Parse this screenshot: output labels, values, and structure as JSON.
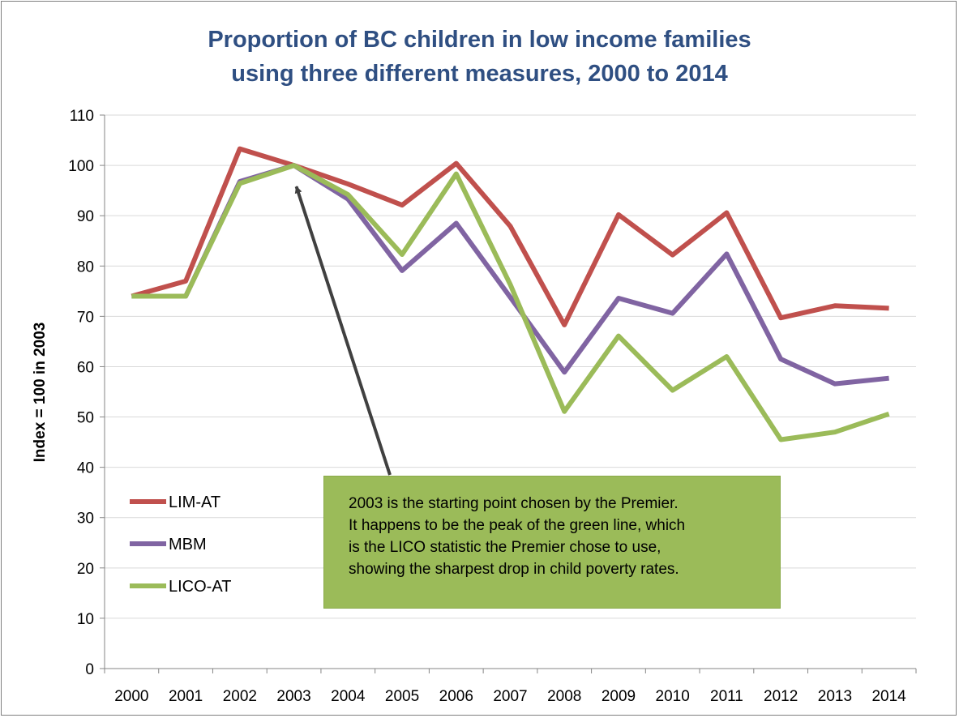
{
  "chart_data": {
    "type": "line",
    "title_lines": [
      "Proportion of BC children in low income families",
      "using three different measures, 2000 to 2014"
    ],
    "ylabel": "Index = 100 in 2003",
    "ylim": [
      0,
      110
    ],
    "yticks": [
      "0",
      "10",
      "20",
      "30",
      "40",
      "50",
      "60",
      "70",
      "80",
      "90",
      "100",
      "110"
    ],
    "categories": [
      "2000",
      "2001",
      "2002",
      "2003",
      "2004",
      "2005",
      "2006",
      "2007",
      "2008",
      "2009",
      "2010",
      "2011",
      "2012",
      "2013",
      "2014"
    ],
    "series": [
      {
        "name": "LIM-AT",
        "color": "#c0504d",
        "values": [
          74,
          77,
          103.3,
          100,
          96.3,
          92.1,
          100.4,
          87.9,
          68.3,
          90.2,
          82.2,
          90.6,
          69.7,
          72.1,
          71.6
        ]
      },
      {
        "name": "MBM",
        "color": "#8064a2",
        "values": [
          74,
          74,
          96.8,
          100,
          93.3,
          79.1,
          88.5,
          73.8,
          58.9,
          73.6,
          70.6,
          82.4,
          61.5,
          56.6,
          57.7
        ]
      },
      {
        "name": "LICO-AT",
        "color": "#9bbb59",
        "values": [
          74,
          74,
          96.4,
          100,
          94.2,
          82.3,
          98.3,
          76.3,
          51.1,
          66.1,
          55.3,
          62.0,
          45.5,
          47.0,
          50.6
        ]
      }
    ],
    "grid": true,
    "legend": "bottom-left",
    "annotation": {
      "lines": [
        "2003 is the starting point chosen by the Premier.",
        "It happens to be the peak of the green line, which",
        "is the LICO statistic the Premier chose to use,",
        "showing the sharpest drop in child poverty rates."
      ],
      "background": "#9bbb59",
      "arrow_target_category": "2003",
      "arrow_target_value": 100
    }
  }
}
